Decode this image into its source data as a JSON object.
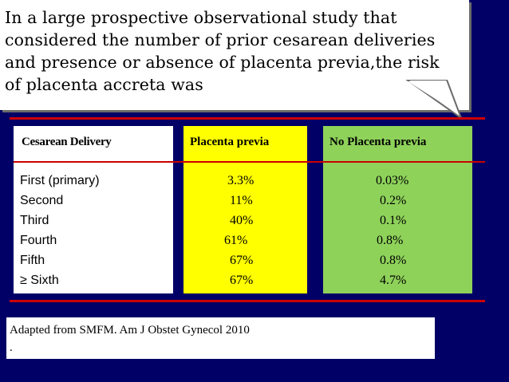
{
  "callout": {
    "lines": [
      "In a large prospective observational study that",
      "considered the number of prior cesarean deliveries",
      "and presence or absence of placenta previa,the risk",
      "of placenta accreta was"
    ]
  },
  "table": {
    "headers": {
      "cesarean": "Cesarean Delivery",
      "previa": "Placenta previa",
      "no_previa": "No Placenta previa"
    },
    "rows": [
      {
        "label": "First (primary)",
        "previa": "3.3%",
        "no_previa": "0.03%"
      },
      {
        "label": "Second",
        "previa": "11%",
        "no_previa": "0.2%"
      },
      {
        "label": "Third",
        "previa": "40%",
        "no_previa": "0.1%"
      },
      {
        "label": "Fourth",
        "previa": "61%",
        "no_previa": "0.8%"
      },
      {
        "label": "Fifth",
        "previa": "67%",
        "no_previa": "0.8%"
      },
      {
        "label": "≥ Sixth",
        "previa": "67%",
        "no_previa": "4.7%"
      }
    ]
  },
  "source": {
    "text": "Adapted from  SMFM. Am J Obstet Gynecol  2010",
    "dot": "."
  },
  "colors": {
    "background": "#000066",
    "previa_panel": "#ffff00",
    "no_previa_panel": "#8ed25a",
    "divider": "#cc0000"
  }
}
